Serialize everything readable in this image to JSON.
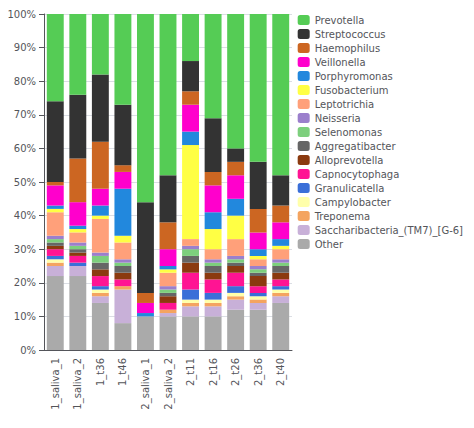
{
  "chart_data": {
    "type": "bar",
    "stacked": true,
    "categories": [
      "1_saliva_1",
      "1_saliva_2",
      "1_t36",
      "1_t46",
      "2_saliva_1",
      "2_saliva_2",
      "2_t11",
      "2_t16",
      "2_t26",
      "2_t36",
      "2_t40"
    ],
    "series": [
      {
        "name": "Other",
        "color": "#aaaaaa",
        "values": [
          22,
          22,
          14,
          8,
          10,
          10,
          10,
          10,
          12,
          12,
          14
        ]
      },
      {
        "name": "Saccharibacteria_(TM7)_[G-6]",
        "color": "#c8b0d8",
        "values": [
          3,
          3,
          2,
          10,
          0,
          1,
          3,
          3,
          3,
          2,
          2
        ]
      },
      {
        "name": "Treponema",
        "color": "#f4a460",
        "values": [
          1,
          0,
          1,
          1,
          0,
          1,
          1,
          1,
          1,
          1,
          1
        ]
      },
      {
        "name": "Campylobacter",
        "color": "#ffffaa",
        "values": [
          1,
          0,
          1,
          0,
          0,
          0,
          1,
          1,
          1,
          1,
          1
        ]
      },
      {
        "name": "Granulicatella",
        "color": "#3a6fd8",
        "values": [
          1,
          1,
          1,
          0,
          0,
          0,
          3,
          2,
          2,
          1,
          1
        ]
      },
      {
        "name": "Capnocytophaga",
        "color": "#ff1493",
        "values": [
          2,
          2,
          3,
          2,
          0,
          2,
          5,
          4,
          4,
          2,
          2
        ]
      },
      {
        "name": "Alloprevotella",
        "color": "#8b3a0f",
        "values": [
          1,
          1,
          2,
          2,
          0,
          2,
          3,
          2,
          2,
          3,
          2
        ]
      },
      {
        "name": "Aggregatibacter",
        "color": "#666666",
        "values": [
          1,
          1,
          2,
          2,
          0,
          1,
          2,
          2,
          1,
          1,
          2
        ]
      },
      {
        "name": "Selenomonas",
        "color": "#7dcf7d",
        "values": [
          1,
          1,
          2,
          1,
          0,
          1,
          2,
          1,
          1,
          1,
          1
        ]
      },
      {
        "name": "Neisseria",
        "color": "#9b7fcc",
        "values": [
          1,
          1,
          1,
          1,
          0,
          1,
          1,
          1,
          1,
          1,
          1
        ]
      },
      {
        "name": "Leptotrichia",
        "color": "#ffa07a",
        "values": [
          7,
          3,
          10,
          5,
          0,
          4,
          2,
          3,
          5,
          2,
          3
        ]
      },
      {
        "name": "Fusobacterium",
        "color": "#ffff44",
        "values": [
          1,
          1,
          1,
          2,
          0,
          1,
          28,
          6,
          7,
          1,
          1
        ]
      },
      {
        "name": "Porphyromonas",
        "color": "#2288dd",
        "values": [
          1,
          1,
          3,
          14,
          1,
          1,
          4,
          5,
          5,
          2,
          2
        ]
      },
      {
        "name": "Veillonella",
        "color": "#ff00cc",
        "values": [
          6,
          7,
          5,
          5,
          3,
          5,
          8,
          8,
          7,
          5,
          5
        ]
      },
      {
        "name": "Haemophilus",
        "color": "#cc6622",
        "values": [
          1,
          13,
          14,
          2,
          3,
          8,
          4,
          4,
          4,
          7,
          5
        ]
      },
      {
        "name": "Streptococcus",
        "color": "#333333",
        "values": [
          24,
          19,
          20,
          18,
          27,
          14,
          9,
          16,
          4,
          14,
          9
        ]
      },
      {
        "name": "Prevotella",
        "color": "#55cc55",
        "values": [
          26,
          24,
          18,
          27,
          56,
          48,
          14,
          31,
          40,
          44,
          48
        ]
      }
    ],
    "ylim": [
      0,
      100
    ],
    "yticks": [
      {
        "value": 0,
        "label": "0%"
      },
      {
        "value": 10,
        "label": "10%"
      },
      {
        "value": 20,
        "label": "20%"
      },
      {
        "value": 30,
        "label": "30%"
      },
      {
        "value": 40,
        "label": "40%"
      },
      {
        "value": 50,
        "label": "50%"
      },
      {
        "value": 60,
        "label": "60%"
      },
      {
        "value": 70,
        "label": "70%"
      },
      {
        "value": 80,
        "label": "80%"
      },
      {
        "value": 90,
        "label": "90%"
      },
      {
        "value": 100,
        "label": "100%"
      }
    ],
    "grid": true,
    "legend": "right"
  }
}
